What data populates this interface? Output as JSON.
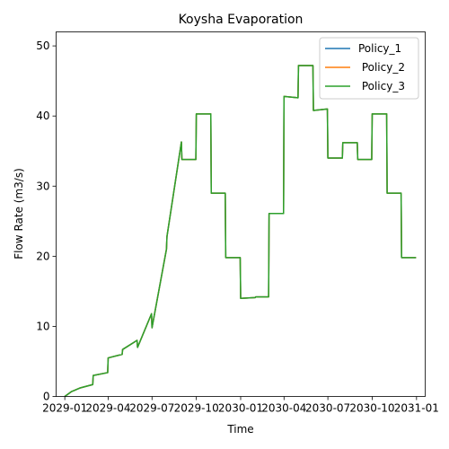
{
  "chart_data": {
    "type": "line",
    "title": "Koysha Evaporation",
    "xlabel": "Time",
    "ylabel": "Flow Rate (m3/s)",
    "xlim": [
      "2028-12-14",
      "2031-01-19"
    ],
    "ylim": [
      0,
      52
    ],
    "x_ticks": [
      {
        "date": "2029-01-01",
        "label": "2029-01"
      },
      {
        "date": "2029-04-01",
        "label": "2029-04"
      },
      {
        "date": "2029-07-01",
        "label": "2029-07"
      },
      {
        "date": "2029-10-01",
        "label": "2029-10"
      },
      {
        "date": "2030-01-01",
        "label": "2030-01"
      },
      {
        "date": "2030-04-01",
        "label": "2030-04"
      },
      {
        "date": "2030-07-01",
        "label": "2030-07"
      },
      {
        "date": "2030-10-01",
        "label": "2030-10"
      },
      {
        "date": "2031-01-01",
        "label": "2031-01"
      }
    ],
    "y_ticks": [
      0,
      10,
      20,
      30,
      40,
      50
    ],
    "legend": {
      "placement": "top-right"
    },
    "series": [
      {
        "name": "Policy_1",
        "color": "#1f77b4"
      },
      {
        "name": " Policy_2",
        "color": "#ff7f0e"
      },
      {
        "name": " Policy_3",
        "color": "#2ca02c"
      }
    ],
    "x": [
      "2029-01-01",
      "2029-01-15",
      "2029-02-01",
      "2029-02-28",
      "2029-03-01",
      "2029-03-31",
      "2029-04-01",
      "2029-04-30",
      "2029-05-01",
      "2029-05-31",
      "2029-06-01",
      "2029-06-30",
      "2029-07-01",
      "2029-07-31",
      "2029-08-01",
      "2029-08-31",
      "2029-09-01",
      "2029-09-30",
      "2029-10-01",
      "2029-10-31",
      "2029-11-01",
      "2029-11-30",
      "2029-12-01",
      "2029-12-31",
      "2030-01-01",
      "2030-01-31",
      "2030-02-01",
      "2030-02-28",
      "2030-03-01",
      "2030-03-31",
      "2030-04-01",
      "2030-04-30",
      "2030-05-01",
      "2030-05-31",
      "2030-06-01",
      "2030-06-30",
      "2030-07-01",
      "2030-07-31",
      "2030-08-01",
      "2030-08-31",
      "2030-09-01",
      "2030-09-30",
      "2030-10-01",
      "2030-10-31",
      "2030-11-01",
      "2030-11-30",
      "2030-12-01",
      "2030-12-31"
    ],
    "values": [
      0.0,
      0.7,
      1.2,
      1.7,
      3.0,
      3.4,
      5.5,
      6.0,
      6.7,
      8.0,
      7.0,
      11.8,
      9.8,
      21.0,
      22.8,
      36.3,
      33.8,
      33.8,
      40.3,
      40.3,
      29.0,
      29.0,
      19.8,
      19.8,
      14.0,
      14.1,
      14.2,
      14.2,
      26.1,
      26.1,
      42.8,
      42.6,
      47.2,
      47.2,
      40.8,
      41.0,
      34.0,
      34.0,
      36.2,
      36.2,
      33.8,
      33.8,
      40.3,
      40.3,
      29.0,
      29.0,
      19.8,
      19.8
    ]
  }
}
